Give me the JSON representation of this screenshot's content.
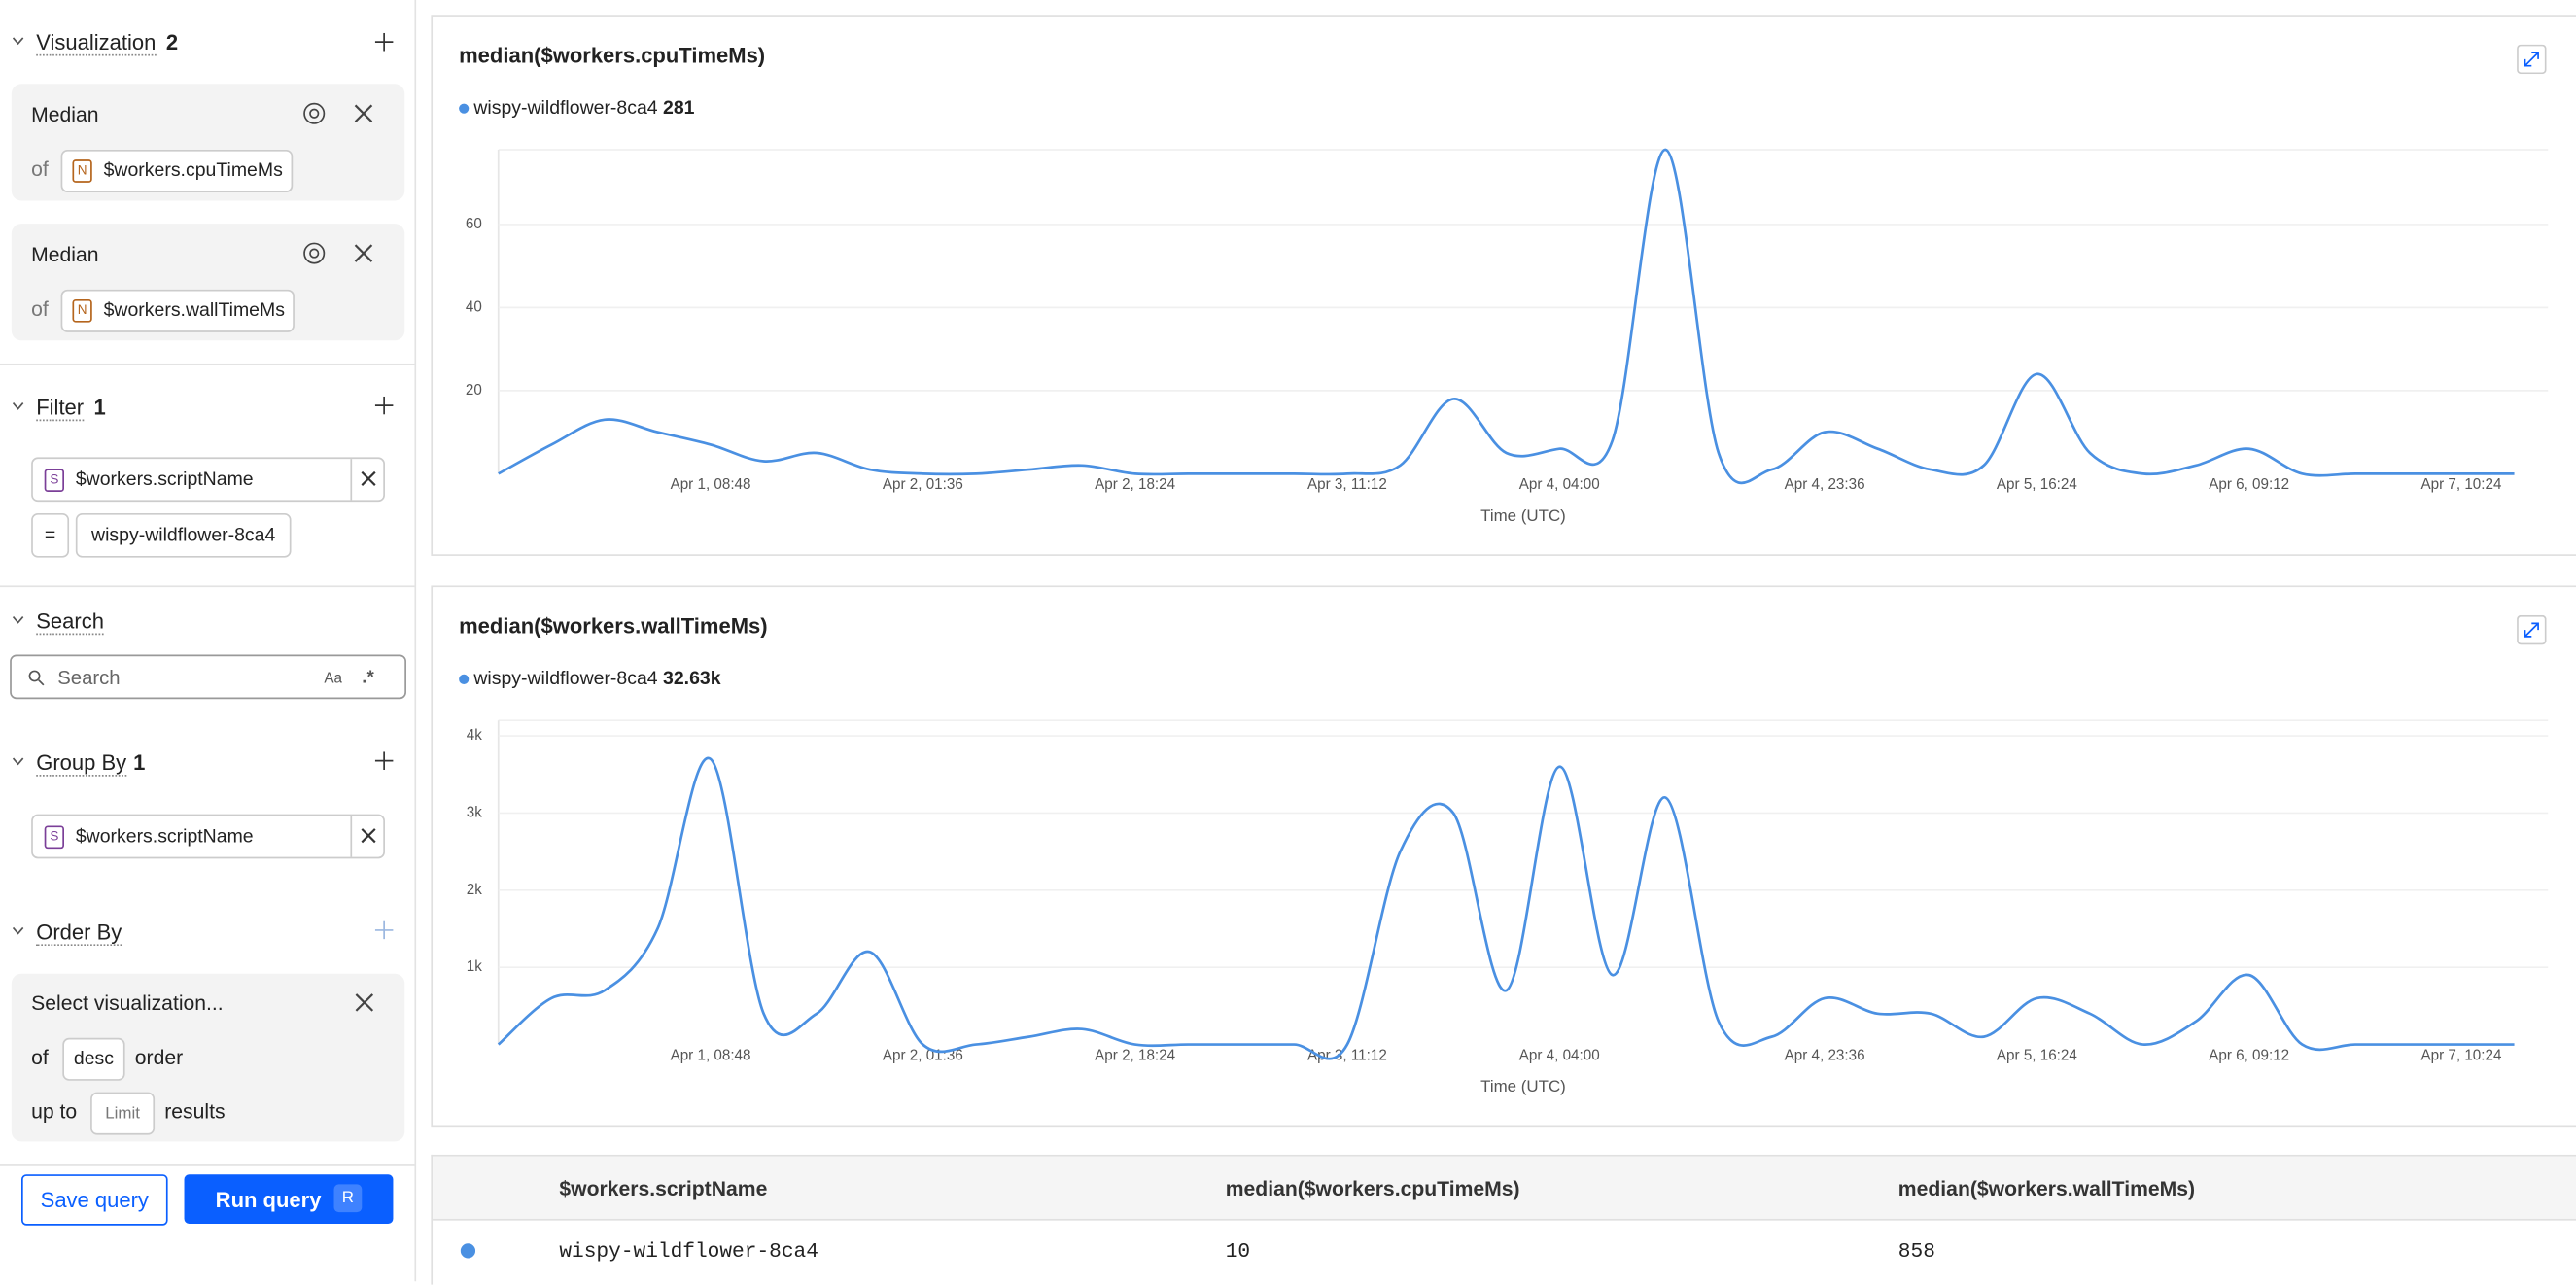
{
  "sidebar": {
    "visualization": {
      "title": "Visualization",
      "count": "2",
      "items": [
        {
          "function": "Median",
          "of": "of",
          "type": "N",
          "field": "$workers.cpuTimeMs"
        },
        {
          "function": "Median",
          "of": "of",
          "type": "N",
          "field": "$workers.wallTimeMs"
        }
      ]
    },
    "filter": {
      "title": "Filter",
      "count": "1",
      "field_type": "S",
      "field": "$workers.scriptName",
      "operator": "=",
      "value": "wispy-wildflower-8ca4"
    },
    "search": {
      "title": "Search",
      "placeholder": "Search",
      "case_toggle": "Aa",
      "regex_toggle": ".*"
    },
    "group_by": {
      "title": "Group By",
      "count": "1",
      "field_type": "S",
      "field": "$workers.scriptName"
    },
    "order_by": {
      "title": "Order By",
      "select": "Select visualization...",
      "of": "of",
      "direction": "desc",
      "order": "order",
      "up_to": "up to",
      "limit_placeholder": "Limit",
      "results": "results"
    },
    "buttons": {
      "save": "Save query",
      "run": "Run query",
      "run_shortcut": "R"
    }
  },
  "chart_data": [
    {
      "type": "line",
      "title": "median($workers.cpuTimeMs)",
      "x_label": "Time (UTC)",
      "categories": [
        null,
        null,
        null,
        null,
        "Apr 1, 08:48",
        null,
        null,
        null,
        "Apr 2, 01:36",
        null,
        null,
        null,
        "Apr 2, 18:24",
        null,
        null,
        null,
        "Apr 3, 11:12",
        null,
        null,
        null,
        "Apr 4, 04:00",
        null,
        null,
        null,
        null,
        "Apr 4, 23:36",
        null,
        null,
        null,
        "Apr 5, 16:24",
        null,
        null,
        null,
        "Apr 6, 09:12",
        null,
        null,
        null,
        "Apr 7, 10:24",
        null
      ],
      "series": [
        {
          "name": "wispy-wildflower-8ca4",
          "summary": "281",
          "color": "#4a90e2",
          "values": [
            0,
            7,
            13,
            10,
            7,
            3,
            5,
            1,
            0,
            0,
            1,
            2,
            0,
            0,
            0,
            0,
            0,
            2,
            18,
            5,
            6,
            8,
            78,
            5,
            1,
            10,
            6,
            1,
            2,
            24,
            5,
            0,
            2,
            6,
            0,
            0,
            0,
            0,
            0
          ]
        }
      ],
      "ylim": [
        0,
        78
      ],
      "yticks": [
        20,
        40,
        60
      ],
      "grid": true
    },
    {
      "type": "line",
      "title": "median($workers.wallTimeMs)",
      "x_label": "Time (UTC)",
      "categories": [
        null,
        null,
        null,
        null,
        "Apr 1, 08:48",
        null,
        null,
        null,
        "Apr 2, 01:36",
        null,
        null,
        null,
        "Apr 2, 18:24",
        null,
        null,
        null,
        "Apr 3, 11:12",
        null,
        null,
        null,
        "Apr 4, 04:00",
        null,
        null,
        null,
        null,
        "Apr 4, 23:36",
        null,
        null,
        null,
        "Apr 5, 16:24",
        null,
        null,
        null,
        "Apr 6, 09:12",
        null,
        null,
        null,
        "Apr 7, 10:24",
        null
      ],
      "series": [
        {
          "name": "wispy-wildflower-8ca4",
          "summary": "32.63k",
          "color": "#4a90e2",
          "values": [
            0,
            600,
            700,
            1500,
            3700,
            400,
            400,
            1200,
            0,
            0,
            100,
            200,
            0,
            0,
            0,
            0,
            0,
            2500,
            3000,
            700,
            3600,
            900,
            3200,
            300,
            100,
            600,
            400,
            400,
            100,
            600,
            400,
            0,
            300,
            900,
            0,
            0,
            0,
            0,
            0
          ]
        }
      ],
      "ylim": [
        0,
        4200
      ],
      "yticks": [
        {
          "value": 1000,
          "label": "1k"
        },
        {
          "value": 2000,
          "label": "2k"
        },
        {
          "value": 3000,
          "label": "3k"
        },
        {
          "value": 4000,
          "label": "4k"
        }
      ],
      "grid": true
    }
  ],
  "table": {
    "headers": [
      "$workers.scriptName",
      "median($workers.cpuTimeMs)",
      "median($workers.wallTimeMs)"
    ],
    "rows": [
      [
        "wispy-wildflower-8ca4",
        10,
        858
      ]
    ]
  }
}
